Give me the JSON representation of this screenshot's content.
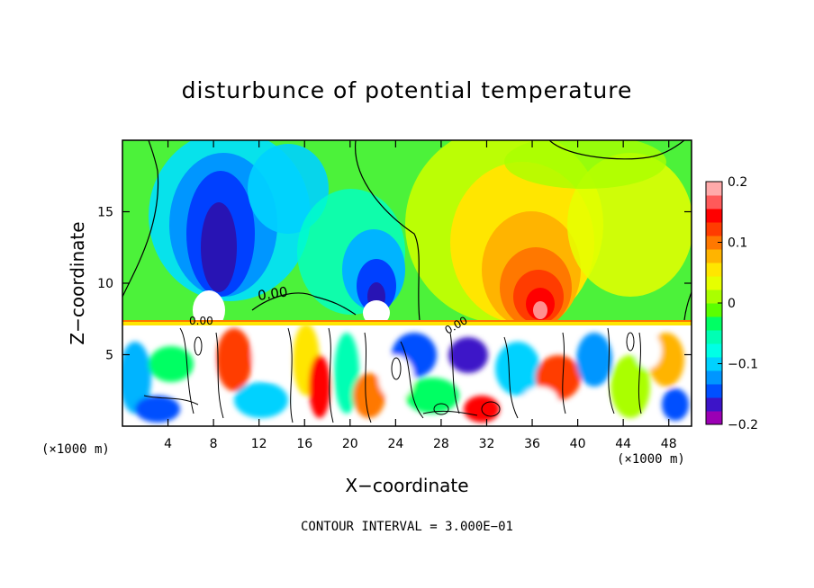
{
  "chart_data": {
    "type": "heatmap",
    "title": "disturbunce of potential temperature",
    "xlabel": "X−coordinate",
    "ylabel": "Z−coordinate",
    "x_unit_left": "(×1000 m)",
    "x_unit_right": "(×1000 m)",
    "footnote": "CONTOUR INTERVAL = 3.000E−01",
    "xlim": [
      0,
      50
    ],
    "ylim": [
      0,
      20
    ],
    "xticks": [
      "4",
      "8",
      "12",
      "16",
      "20",
      "24",
      "28",
      "32",
      "36",
      "40",
      "44",
      "48"
    ],
    "xtick_values": [
      4,
      8,
      12,
      16,
      20,
      24,
      28,
      32,
      36,
      40,
      44,
      48
    ],
    "yticks": [
      "5",
      "10",
      "15"
    ],
    "ytick_values": [
      5,
      10,
      15
    ],
    "colorbar": {
      "range": [
        -0.2,
        0.2
      ],
      "ticks": [
        "0.2",
        "0.1",
        "0",
        "−0.1",
        "−0.2"
      ],
      "tick_values": [
        0.2,
        0.1,
        0,
        -0.1,
        -0.2
      ],
      "colors": [
        "#9b00b4",
        "#3c14c8",
        "#0050ff",
        "#0096ff",
        "#00d2ff",
        "#00ffe6",
        "#00ffb4",
        "#00ff64",
        "#5aff00",
        "#aaff00",
        "#e6ff00",
        "#ffe600",
        "#ffb400",
        "#ff7800",
        "#ff3c00",
        "#ff0000",
        "#ff5a5a",
        "#ffaaaa"
      ]
    },
    "contour_labels": [
      "0.00",
      "0.00",
      "0.00"
    ],
    "features": [
      {
        "x": 9,
        "z": 14,
        "value": -0.18
      },
      {
        "x": 22,
        "z": 10,
        "value": -0.15
      },
      {
        "x": 36,
        "z": 10,
        "value": 0.15
      },
      {
        "x": 40,
        "z": 17,
        "value": 0.08
      },
      {
        "x": 15,
        "z": 18,
        "value": -0.05
      }
    ],
    "grid": false
  }
}
